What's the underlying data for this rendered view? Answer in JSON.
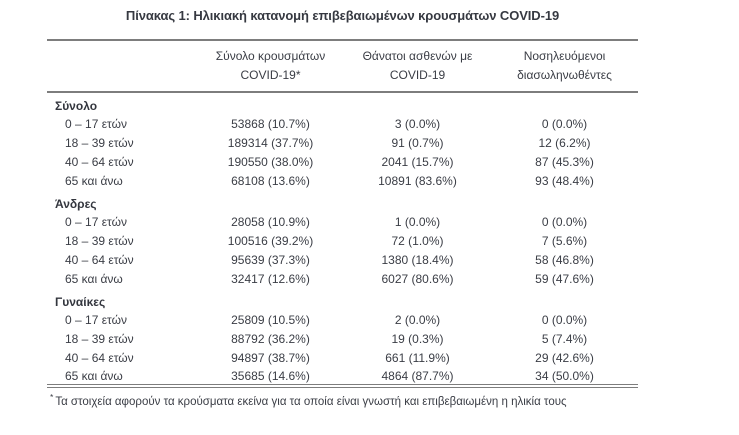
{
  "title": "Πίνακας 1: Ηλικιακή κατανομή επιβεβαιωμένων κρουσμάτων COVID-19",
  "table": {
    "col_headers": [
      {
        "line1": "Σύνολο κρουσμάτων",
        "line2": "COVID-19*"
      },
      {
        "line1": "Θάνατοι ασθενών με",
        "line2": "COVID-19"
      },
      {
        "line1": "Νοσηλευόμενοι",
        "line2": "διασωληνωθέντες"
      }
    ],
    "sections": [
      {
        "label": "Σύνολο",
        "rows": [
          {
            "label": "0 – 17 ετών",
            "cases": "53868 (10.7%)",
            "deaths": "3 (0.0%)",
            "intubated": "0 (0.0%)"
          },
          {
            "label": "18 – 39 ετών",
            "cases": "189314 (37.7%)",
            "deaths": "91 (0.7%)",
            "intubated": "12 (6.2%)"
          },
          {
            "label": "40 – 64 ετών",
            "cases": "190550 (38.0%)",
            "deaths": "2041 (15.7%)",
            "intubated": "87 (45.3%)"
          },
          {
            "label": "65 και άνω",
            "cases": "68108 (13.6%)",
            "deaths": "10891 (83.6%)",
            "intubated": "93 (48.4%)"
          }
        ]
      },
      {
        "label": "Άνδρες",
        "rows": [
          {
            "label": "0 – 17 ετών",
            "cases": "28058 (10.9%)",
            "deaths": "1 (0.0%)",
            "intubated": "0 (0.0%)"
          },
          {
            "label": "18 – 39 ετών",
            "cases": "100516 (39.2%)",
            "deaths": "72 (1.0%)",
            "intubated": "7 (5.6%)"
          },
          {
            "label": "40 – 64 ετών",
            "cases": "95639 (37.3%)",
            "deaths": "1380 (18.4%)",
            "intubated": "58 (46.8%)"
          },
          {
            "label": "65 και άνω",
            "cases": "32417 (12.6%)",
            "deaths": "6027 (80.6%)",
            "intubated": "59 (47.6%)"
          }
        ]
      },
      {
        "label": "Γυναίκες",
        "rows": [
          {
            "label": "0 – 17 ετών",
            "cases": "25809 (10.5%)",
            "deaths": "2 (0.0%)",
            "intubated": "0 (0.0%)"
          },
          {
            "label": "18 – 39 ετών",
            "cases": "88792 (36.2%)",
            "deaths": "19 (0.3%)",
            "intubated": "5 (7.4%)"
          },
          {
            "label": "40 – 64 ετών",
            "cases": "94897 (38.7%)",
            "deaths": "661 (11.9%)",
            "intubated": "29 (42.6%)"
          },
          {
            "label": "65 και άνω",
            "cases": "35685 (14.6%)",
            "deaths": "4864 (87.7%)",
            "intubated": "34 (50.0%)"
          }
        ]
      }
    ],
    "footnote": {
      "marker": "*",
      "text": "Τα στοιχεία αφορούν τα κρούσματα εκείνα για τα οποία είναι γνωστή και επιβεβαιωμένη η ηλικία τους"
    }
  },
  "colors": {
    "text": "#3a3d45",
    "rule": "#7d7d7d"
  }
}
